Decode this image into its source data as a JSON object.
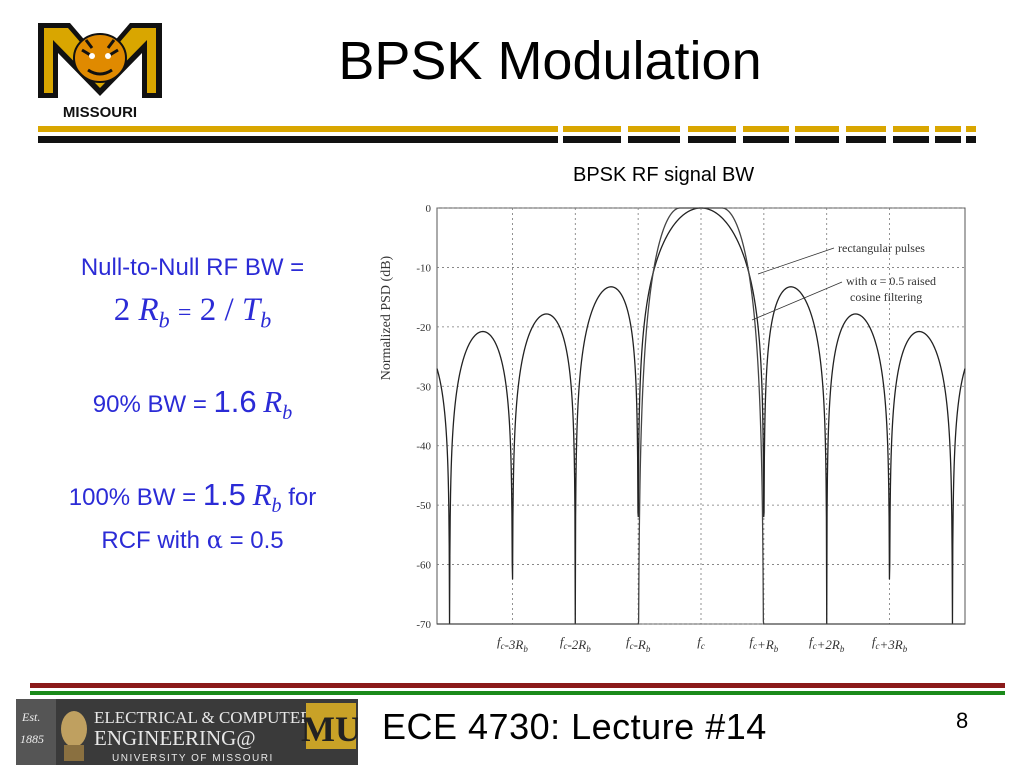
{
  "slide": {
    "title": "BPSK Modulation",
    "footer_title": "ECE 4730:  Lecture #14",
    "slide_number": "8"
  },
  "logo": {
    "text": "MISSOURI"
  },
  "footer_logo": {
    "est": "Est.",
    "year": "1885",
    "line1": "ELECTRICAL & COMPUTER",
    "line2": "ENGINEERING@",
    "mu": "MU",
    "line3": "UNIVERSITY OF MISSOURI"
  },
  "left": {
    "null_to_null_label": "Null-to-Null RF BW =",
    "nn_2a": "2",
    "nn_R": "R",
    "nn_b1": "b",
    "nn_eq": "=",
    "nn_2b": "2",
    "nn_slash": "/",
    "nn_T": "T",
    "nn_b2": "b",
    "bw90_label": "90%  BW =",
    "bw90_value": "1.6",
    "bw90_R": "R",
    "bw90_b": "b",
    "bw100_label": "100% BW =",
    "bw100_value": "1.5",
    "bw100_R": "R",
    "bw100_b": "b",
    "bw100_for": "for",
    "rcf_label": "RCF with",
    "alpha": "α",
    "rcf_value": "= 0.5"
  },
  "chart_caption": "BPSK RF signal BW",
  "chart_data": {
    "type": "line",
    "ylabel": "Normalized PSD (dB)",
    "ylim": [
      -70,
      0
    ],
    "yticks": [
      "0",
      "-10",
      "-20",
      "-30",
      "-40",
      "-50",
      "-60",
      "-70"
    ],
    "xlim": [
      -4.2,
      4.2
    ],
    "xticks": [
      {
        "x": -3,
        "label": "f_c-3R_b"
      },
      {
        "x": -2,
        "label": "f_c-2R_b"
      },
      {
        "x": -1,
        "label": "f_c-R_b"
      },
      {
        "x": 0,
        "label": "f_c"
      },
      {
        "x": 1,
        "label": "f_c+R_b"
      },
      {
        "x": 2,
        "label": "f_c+2R_b"
      },
      {
        "x": 3,
        "label": "f_c+3R_b"
      }
    ],
    "grid": true,
    "annotations": [
      {
        "text": "rectangular pulses"
      },
      {
        "text": "with α = 0.5 raised"
      },
      {
        "text": "cosine filtering"
      }
    ],
    "series": [
      {
        "name": "rectangular pulses",
        "kind": "sinc_squared"
      },
      {
        "name": "with α = 0.5 raised cosine filtering",
        "kind": "raised_cosine",
        "alpha": 0.5
      }
    ]
  }
}
